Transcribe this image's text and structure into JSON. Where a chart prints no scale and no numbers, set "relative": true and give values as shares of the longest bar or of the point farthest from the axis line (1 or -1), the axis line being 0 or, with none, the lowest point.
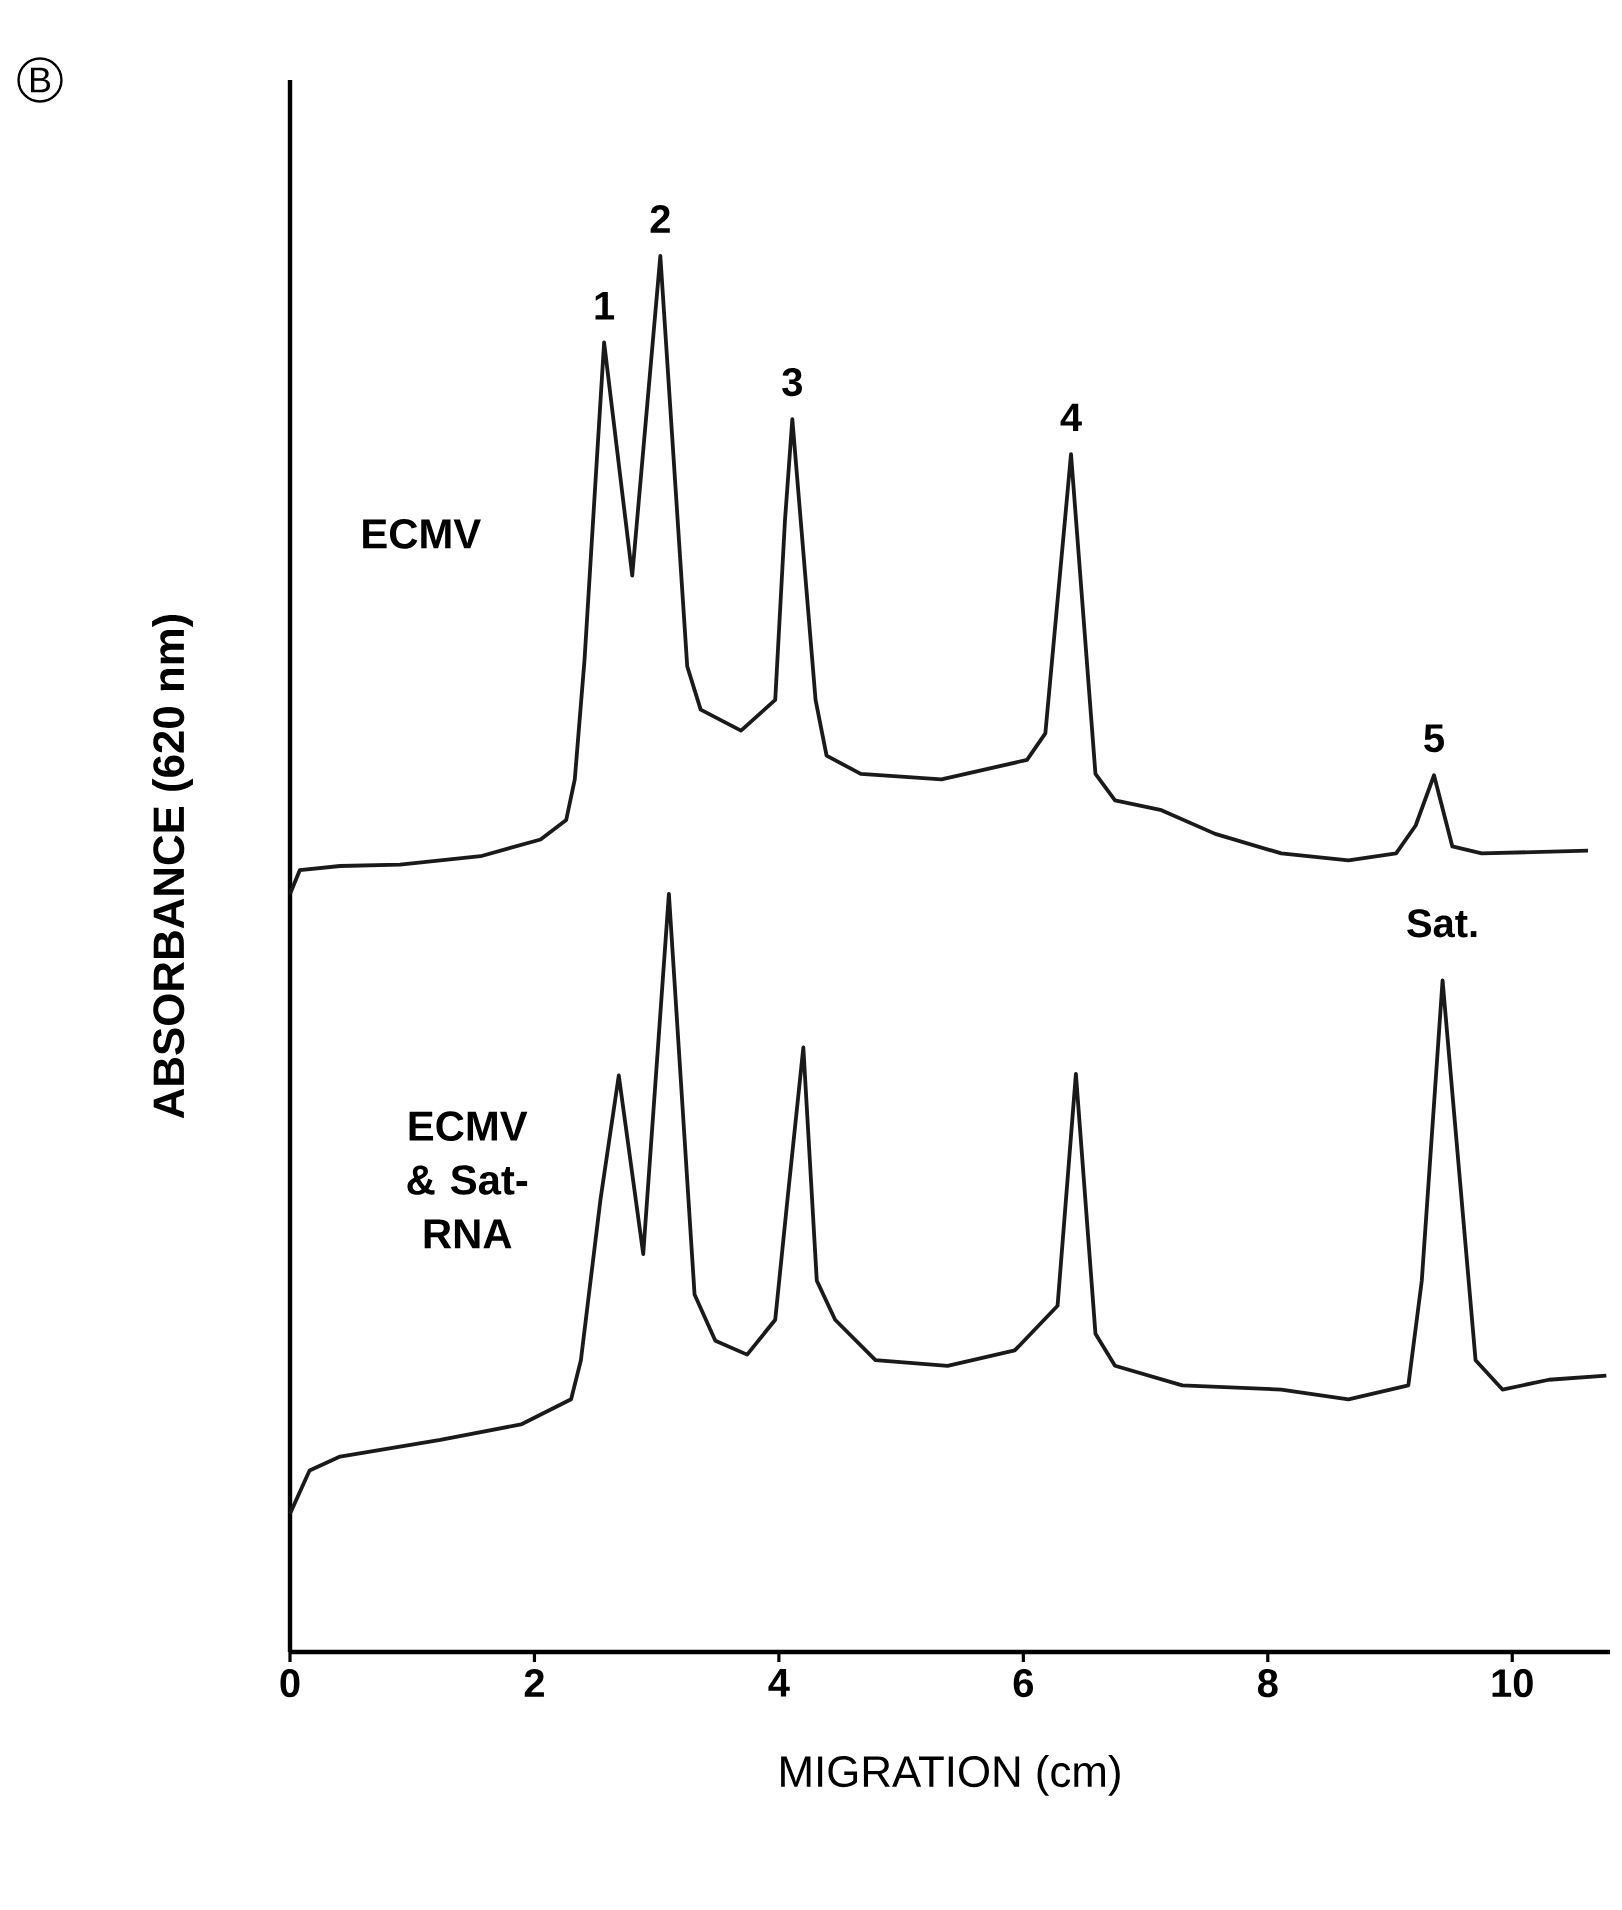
{
  "chart_data": {
    "type": "line",
    "relative": true,
    "xlabel": "MIGRATION (cm)",
    "ylabel": "ABSORBANCE   (620 nm)",
    "xlim": [
      0,
      10.8
    ],
    "xticks": [
      0,
      2,
      4,
      6,
      8,
      10
    ],
    "grid": false,
    "legend": false,
    "marker": "none",
    "line_style": "solid",
    "series": [
      {
        "name": "ECMV",
        "color": "#1a1a1a",
        "x": [
          0,
          0.08,
          0.41,
          0.9,
          1.56,
          2.05,
          2.26,
          2.33,
          2.41,
          2.49,
          2.57,
          2.8,
          3.03,
          3.25,
          3.36,
          3.69,
          3.97,
          4.05,
          4.11,
          4.3,
          4.39,
          4.67,
          5.33,
          6.03,
          6.18,
          6.39,
          6.59,
          6.75,
          7.13,
          7.57,
          8.11,
          8.66,
          9.05,
          9.21,
          9.36,
          9.51,
          9.75,
          10.62
        ],
        "values": [
          0.543,
          0.56,
          0.563,
          0.564,
          0.57,
          0.582,
          0.596,
          0.625,
          0.711,
          0.825,
          0.938,
          0.771,
          1.0,
          0.706,
          0.675,
          0.66,
          0.682,
          0.811,
          0.883,
          0.682,
          0.642,
          0.629,
          0.625,
          0.639,
          0.658,
          0.858,
          0.629,
          0.61,
          0.603,
          0.586,
          0.572,
          0.567,
          0.572,
          0.592,
          0.628,
          0.577,
          0.572,
          0.574
        ]
      },
      {
        "name": "ECMV & Sat-RNA",
        "color": "#1a1a1a",
        "x": [
          0,
          0.16,
          0.41,
          1.23,
          1.89,
          2.3,
          2.38,
          2.54,
          2.69,
          2.89,
          3.1,
          3.31,
          3.48,
          3.74,
          3.97,
          4.07,
          4.2,
          4.31,
          4.46,
          4.79,
          5.38,
          5.93,
          6.28,
          6.43,
          6.59,
          6.75,
          7.3,
          8.11,
          8.66,
          9.15,
          9.26,
          9.43,
          9.7,
          9.92,
          10.3,
          10.77
        ],
        "values": [
          0.099,
          0.13,
          0.14,
          0.152,
          0.163,
          0.181,
          0.209,
          0.324,
          0.413,
          0.285,
          0.543,
          0.256,
          0.223,
          0.213,
          0.238,
          0.324,
          0.433,
          0.266,
          0.238,
          0.209,
          0.205,
          0.216,
          0.248,
          0.414,
          0.228,
          0.205,
          0.191,
          0.188,
          0.181,
          0.191,
          0.266,
          0.481,
          0.209,
          0.188,
          0.195,
          0.198
        ]
      }
    ],
    "annotations": [
      "B",
      {
        "text": "1",
        "x": 2.57,
        "y": 0.938
      },
      {
        "text": "2",
        "x": 3.03,
        "y": 1.0
      },
      {
        "text": "3",
        "x": 4.11,
        "y": 0.883
      },
      {
        "text": "4",
        "x": 6.39,
        "y": 0.858
      },
      {
        "text": "5",
        "x": 9.36,
        "y": 0.628
      },
      {
        "text": "Sat.",
        "x": 9.43,
        "y": 0.481
      }
    ]
  }
}
